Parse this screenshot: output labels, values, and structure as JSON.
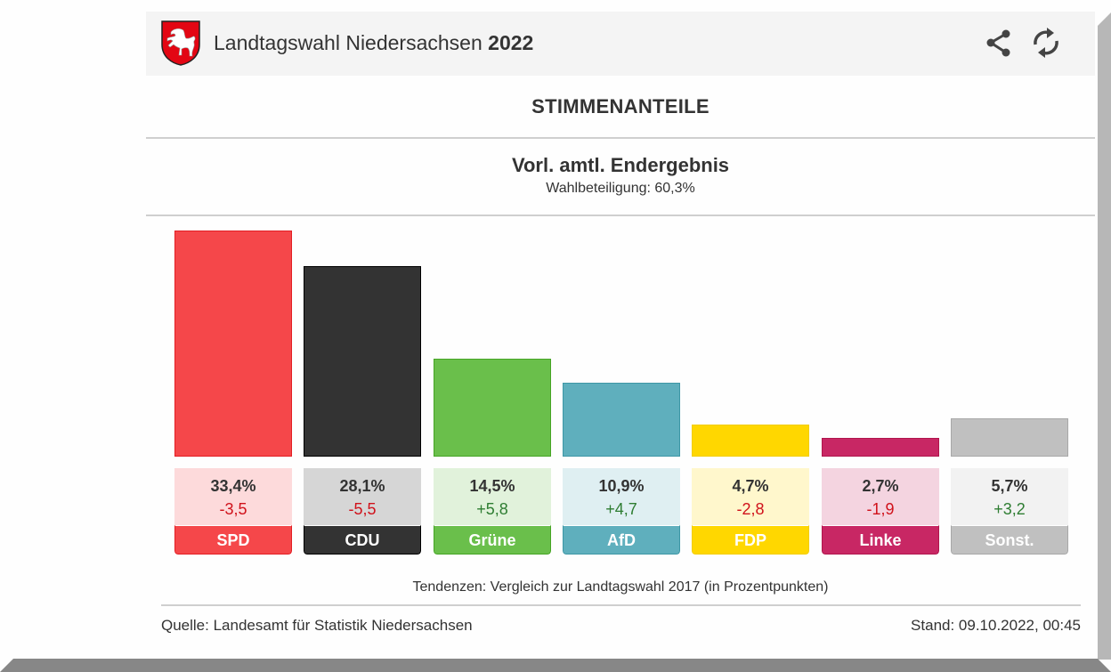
{
  "header": {
    "title_main": "Landtagswahl Niedersachsen",
    "title_year": "2022",
    "logo_icon": "lower-saxony-coat-of-arms-icon",
    "actions": [
      {
        "name": "share",
        "icon": "share-icon"
      },
      {
        "name": "refresh",
        "icon": "refresh-icon"
      }
    ]
  },
  "section_title": "STIMMENANTEILE",
  "result": {
    "status": "Vorl. amtl. Endergebnis",
    "turnout_label": "Wahlbeteiligung: 60,3%"
  },
  "chart_data": {
    "type": "bar",
    "title": "STIMMENANTEILE",
    "subtitle": "Vorl. amtl. Endergebnis",
    "categories": [
      "SPD",
      "CDU",
      "Grüne",
      "AfD",
      "FDP",
      "Linke",
      "Sonst."
    ],
    "values": [
      33.4,
      28.1,
      14.5,
      10.9,
      4.7,
      2.7,
      5.7
    ],
    "value_labels": [
      "33,4%",
      "28,1%",
      "14,5%",
      "10,9%",
      "4,7%",
      "2,7%",
      "5,7%"
    ],
    "changes": [
      -3.5,
      -5.5,
      5.8,
      4.7,
      -2.8,
      -1.9,
      3.2
    ],
    "change_labels": [
      "-3,5",
      "-5,5",
      "+5,8",
      "+4,7",
      "-2,8",
      "-1,9",
      "+3,2"
    ],
    "colors": [
      "#f5474a",
      "#333333",
      "#6abf4b",
      "#5fafbd",
      "#ffd700",
      "#c82764",
      "#c0c0c0"
    ],
    "border_colors": [
      "#e31e24",
      "#000000",
      "#46a525",
      "#3e97a6",
      "#f2cd00",
      "#b0154d",
      "#a8a8a8"
    ],
    "card_backgrounds": [
      "#fddadb",
      "#d6d6d6",
      "#e1f2db",
      "#dfeff2",
      "#fff7cc",
      "#f4d4e0",
      "#f2f2f2"
    ],
    "positive_color": "#2e7d32",
    "negative_color": "#d0121b",
    "xlabel": "",
    "ylabel": "",
    "ylim": [
      0,
      33.4
    ],
    "grid": false,
    "legend": "none"
  },
  "footnote": "Tendenzen: Vergleich zur Landtagswahl 2017 (in Prozentpunkten)",
  "footer": {
    "source": "Quelle: Landesamt für Statistik Niedersachsen",
    "stand": "Stand: 09.10.2022, 00:45"
  }
}
